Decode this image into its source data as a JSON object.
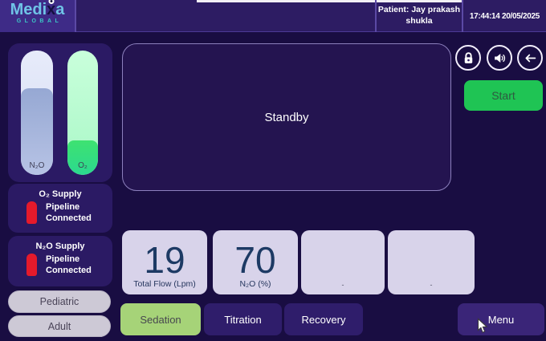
{
  "header": {
    "brand": {
      "part1": "Medi",
      "part2": "x",
      "part3": "a",
      "subtitle": "GLOBAL"
    },
    "patient": "Patient: Jay prakash\nshukla",
    "datetime": "17:44:14 20/05/2025"
  },
  "gauges": {
    "n2o": {
      "label": "N₂O",
      "fill_percent": 70
    },
    "o2": {
      "label": "O₂",
      "fill_percent": 28
    }
  },
  "supplies": {
    "o2": {
      "title": "O₂ Supply",
      "status": "Pipeline Connected"
    },
    "n2o": {
      "title": "N₂O Supply",
      "status": "Pipeline Connected"
    }
  },
  "patient_types": {
    "pediatric": "Pediatric",
    "adult": "Adult"
  },
  "status_panel": {
    "text": "Standby"
  },
  "toolbar_icons": [
    "lock-icon",
    "volume-icon",
    "back-arrow-icon"
  ],
  "start_button": {
    "label": "Start"
  },
  "cards": [
    {
      "value": "19",
      "label": "Total Flow (Lpm)"
    },
    {
      "value": "70",
      "label": "N₂O (%)"
    },
    {
      "value": "-",
      "label": ""
    },
    {
      "value": "-",
      "label": ""
    }
  ],
  "modes": {
    "sedation": "Sedation",
    "titration": "Titration",
    "recovery": "Recovery"
  },
  "menu_button": {
    "label": "Menu"
  },
  "colors": {
    "page_bg": "#190d42",
    "header_bg": "#2d1c63",
    "panel_bg": "#2b1a64",
    "standby_bg": "#241450",
    "card_bg": "#d8d3ea",
    "value_text": "#1d3a64",
    "start_green": "#1fc454",
    "sedation_green": "#a6d378",
    "mode_purple": "#2f1d6b",
    "alert_red": "#e51a2b",
    "brand_blue": "#6fc3e6",
    "brand_teal": "#3cc6c6"
  }
}
